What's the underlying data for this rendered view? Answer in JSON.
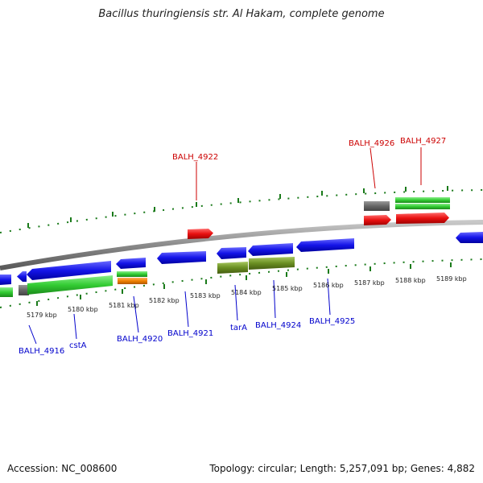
{
  "map": {
    "title": "Bacillus thuringiensis str. Al Hakam, complete genome",
    "accession": "Accession: NC_008600",
    "stats": "Topology: circular; Length: 5,257,091 bp; Genes: 4,882"
  },
  "colors": {
    "forward_gene": "#e01010",
    "reverse_gene": "#1414e0",
    "green_feature": "#33cc33",
    "olive_feature": "#6a8f22",
    "orange_feature": "#f08000",
    "gray_feature": "#666666",
    "backbone": "#8a8a8a",
    "ticks": "#1a7a1a",
    "forward_label": "#cc0000",
    "reverse_label": "#0000cc"
  },
  "scale": {
    "unit": "kbp",
    "ticks": [
      "5179 kbp",
      "5180 kbp",
      "5181 kbp",
      "5182 kbp",
      "5183 kbp",
      "5184 kbp",
      "5185 kbp",
      "5186 kbp",
      "5187 kbp",
      "5188 kbp",
      "5189 kbp"
    ]
  },
  "gene_labels": {
    "forward": [
      "BALH_4922",
      "BALH_4926",
      "BALH_4927"
    ],
    "reverse": [
      "BALH_4916",
      "cstA",
      "BALH_4920",
      "BALH_4921",
      "tarA",
      "BALH_4924",
      "BALH_4925"
    ]
  }
}
